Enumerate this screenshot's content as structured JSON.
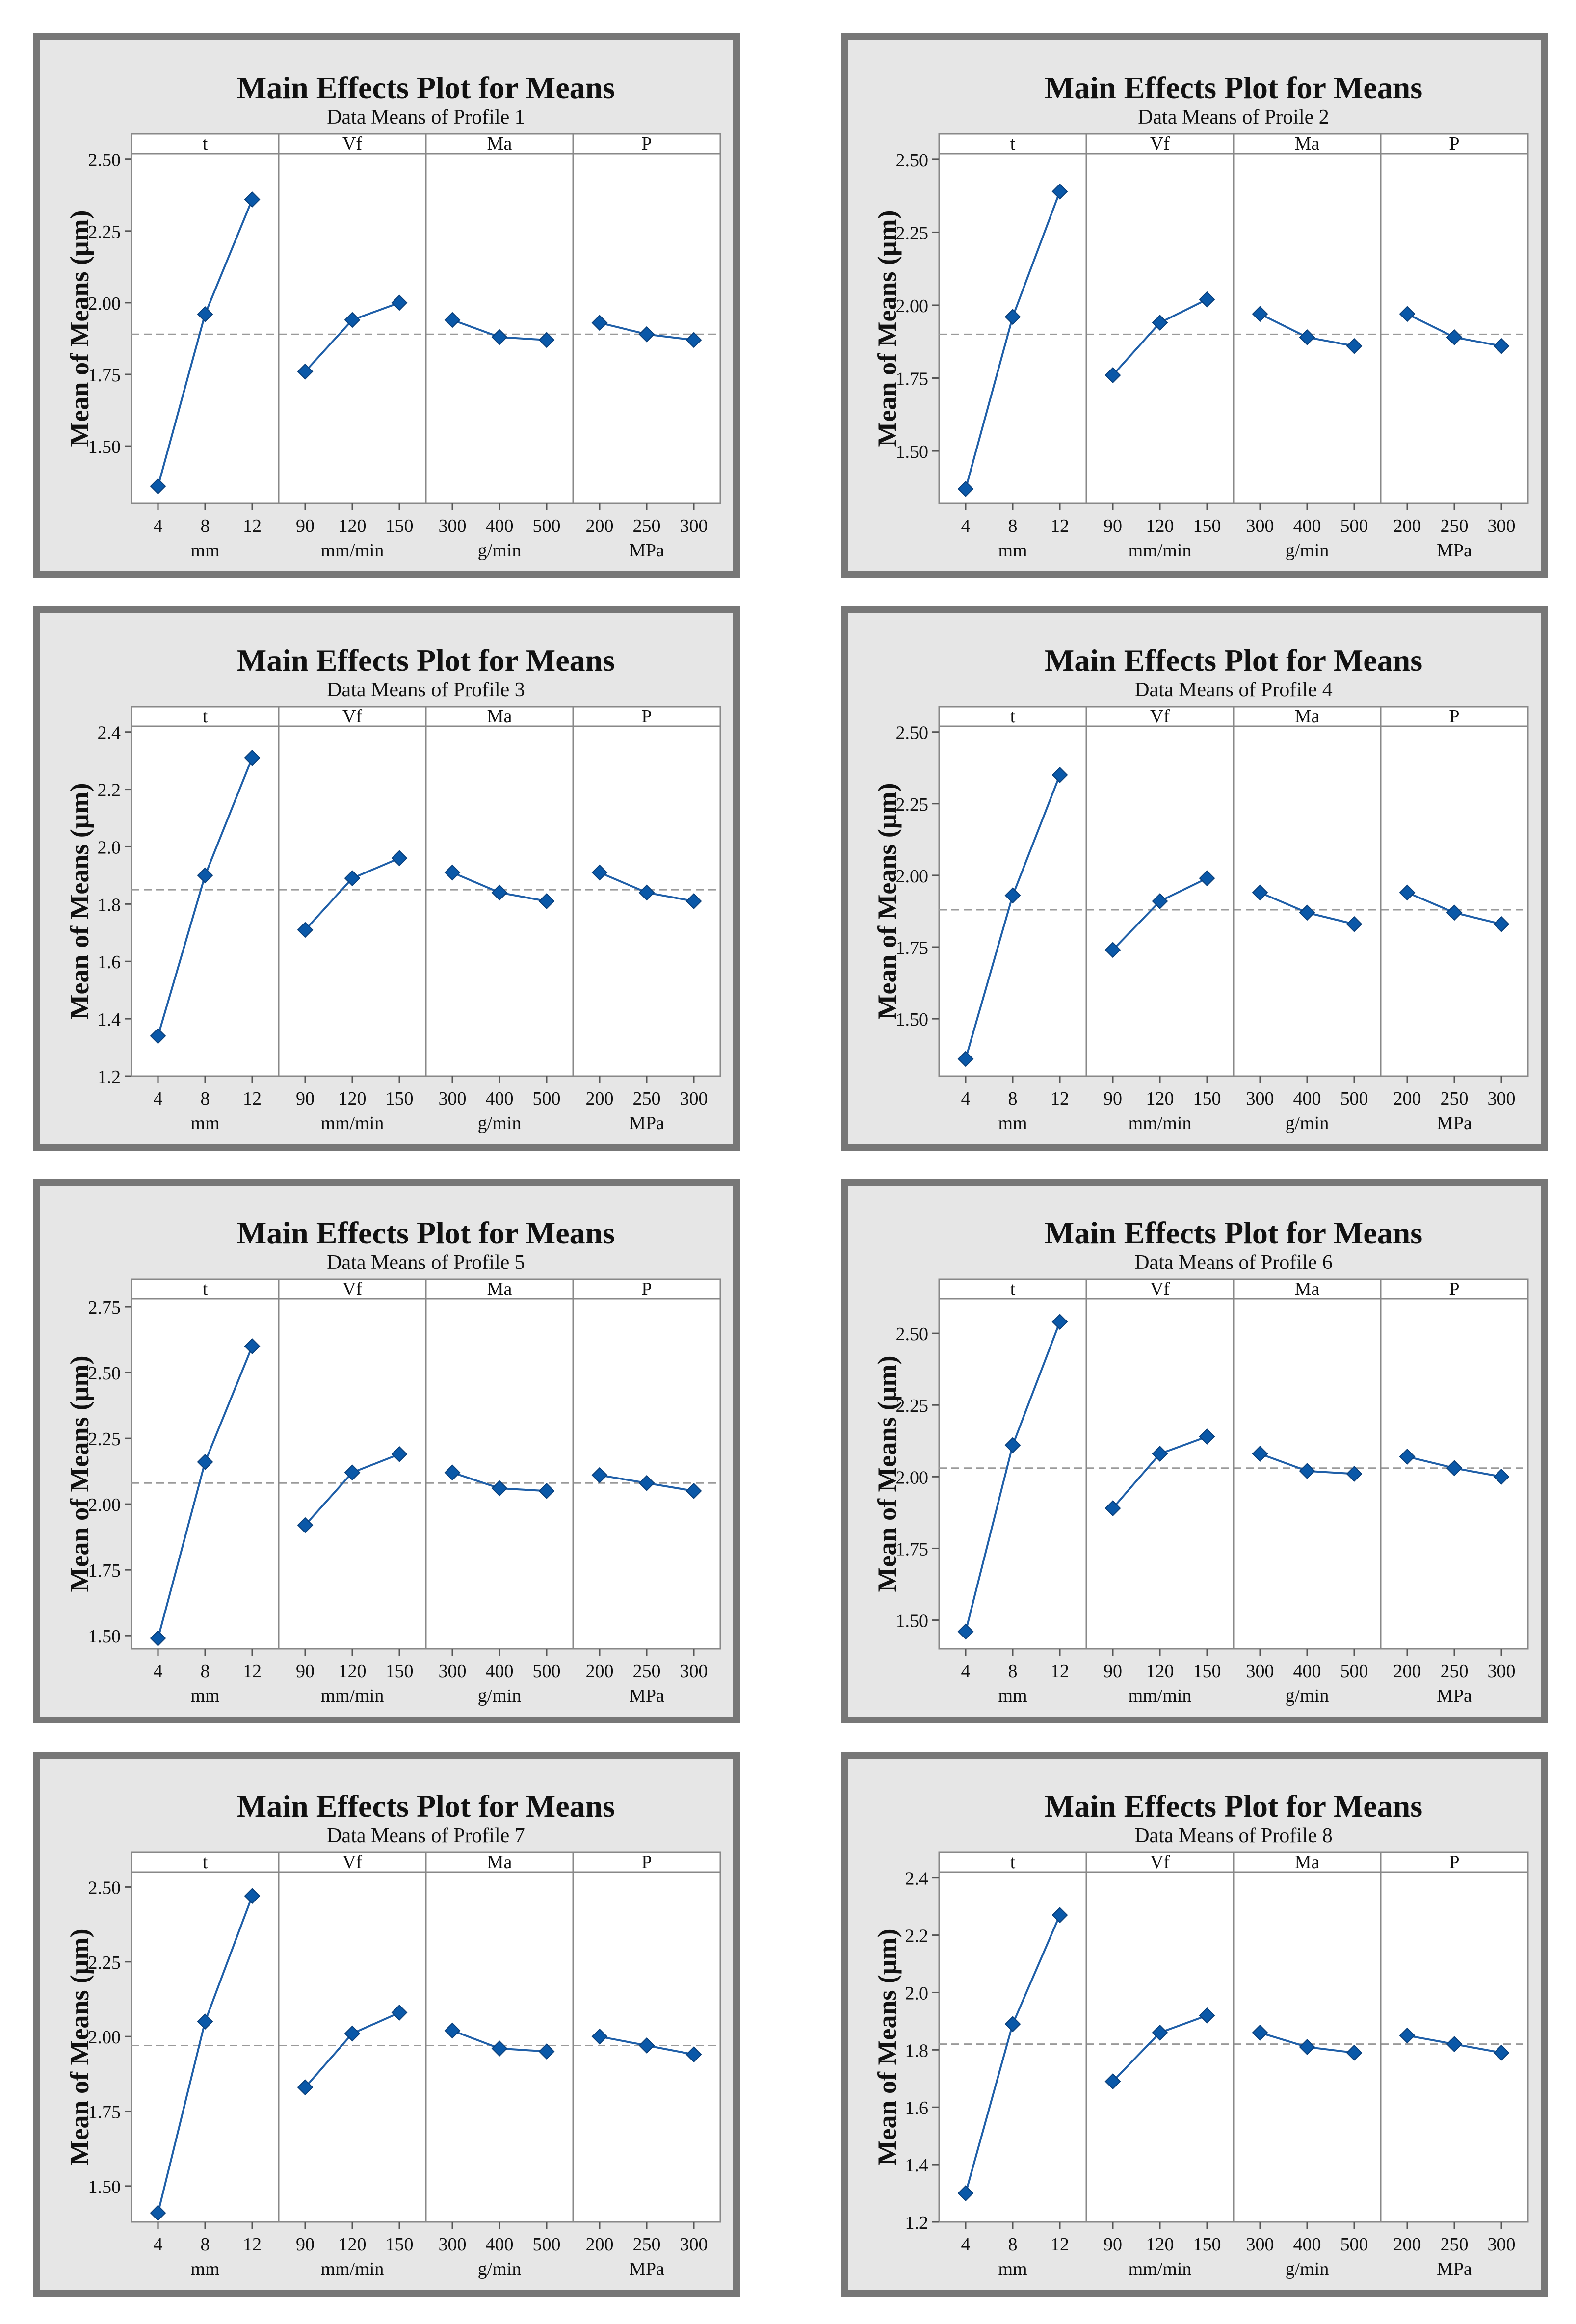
{
  "colors": {
    "line": "#1f5fa8",
    "marker": "#0a58a8",
    "ref_line": "#9a9a9a",
    "frame": "#777777",
    "plot_bg": "#ffffff",
    "panel_bg": "#e6e6e6"
  },
  "chart_data": [
    {
      "type": "line",
      "title": "Main Effects Plot for Means",
      "subtitle": "Data Means of Profile 1",
      "ylabel": "Mean of Means (μm)",
      "ylim": [
        1.3,
        2.52
      ],
      "yticks": [
        1.5,
        1.75,
        2.0,
        2.25,
        2.5
      ],
      "ytick_labels": [
        "1.50",
        "1.75",
        "2.00",
        "2.25",
        "2.50"
      ],
      "reference_mean": 1.89,
      "factors": [
        {
          "name": "t",
          "unit": "mm",
          "levels": [
            "4",
            "8",
            "12"
          ],
          "values": [
            1.36,
            1.96,
            2.36
          ]
        },
        {
          "name": "Vf",
          "unit": "mm/min",
          "levels": [
            "90",
            "120",
            "150"
          ],
          "values": [
            1.76,
            1.94,
            2.0
          ]
        },
        {
          "name": "Ma",
          "unit": "g/min",
          "levels": [
            "300",
            "400",
            "500"
          ],
          "values": [
            1.94,
            1.88,
            1.87
          ]
        },
        {
          "name": "P",
          "unit": "MPa",
          "levels": [
            "200",
            "250",
            "300"
          ],
          "values": [
            1.93,
            1.89,
            1.87
          ]
        }
      ]
    },
    {
      "type": "line",
      "title": "Main Effects Plot for Means",
      "subtitle": "Data Means of Proile 2",
      "ylabel": "Mean of Means (μm)",
      "ylim": [
        1.32,
        2.52
      ],
      "yticks": [
        1.5,
        1.75,
        2.0,
        2.25,
        2.5
      ],
      "ytick_labels": [
        "1.50",
        "1.75",
        "2.00",
        "2.25",
        "2.50"
      ],
      "reference_mean": 1.9,
      "factors": [
        {
          "name": "t",
          "unit": "mm",
          "levels": [
            "4",
            "8",
            "12"
          ],
          "values": [
            1.37,
            1.96,
            2.39
          ]
        },
        {
          "name": "Vf",
          "unit": "mm/min",
          "levels": [
            "90",
            "120",
            "150"
          ],
          "values": [
            1.76,
            1.94,
            2.02
          ]
        },
        {
          "name": "Ma",
          "unit": "g/min",
          "levels": [
            "300",
            "400",
            "500"
          ],
          "values": [
            1.97,
            1.89,
            1.86
          ]
        },
        {
          "name": "P",
          "unit": "MPa",
          "levels": [
            "200",
            "250",
            "300"
          ],
          "values": [
            1.97,
            1.89,
            1.86
          ]
        }
      ]
    },
    {
      "type": "line",
      "title": "Main Effects Plot for Means",
      "subtitle": "Data Means of Profile 3",
      "ylabel": "Mean of Means (μm)",
      "ylim": [
        1.2,
        2.42
      ],
      "yticks": [
        1.2,
        1.4,
        1.6,
        1.8,
        2.0,
        2.2,
        2.4
      ],
      "ytick_labels": [
        "1.2",
        "1.4",
        "1.6",
        "1.8",
        "2.0",
        "2.2",
        "2.4"
      ],
      "reference_mean": 1.85,
      "factors": [
        {
          "name": "t",
          "unit": "mm",
          "levels": [
            "4",
            "8",
            "12"
          ],
          "values": [
            1.34,
            1.9,
            2.31
          ]
        },
        {
          "name": "Vf",
          "unit": "mm/min",
          "levels": [
            "90",
            "120",
            "150"
          ],
          "values": [
            1.71,
            1.89,
            1.96
          ]
        },
        {
          "name": "Ma",
          "unit": "g/min",
          "levels": [
            "300",
            "400",
            "500"
          ],
          "values": [
            1.91,
            1.84,
            1.81
          ]
        },
        {
          "name": "P",
          "unit": "MPa",
          "levels": [
            "200",
            "250",
            "300"
          ],
          "values": [
            1.91,
            1.84,
            1.81
          ]
        }
      ]
    },
    {
      "type": "line",
      "title": "Main Effects Plot for Means",
      "subtitle": "Data Means of Profile 4",
      "ylabel": "Mean of Means (μm)",
      "ylim": [
        1.3,
        2.52
      ],
      "yticks": [
        1.5,
        1.75,
        2.0,
        2.25,
        2.5
      ],
      "ytick_labels": [
        "1.50",
        "1.75",
        "2.00",
        "2.25",
        "2.50"
      ],
      "reference_mean": 1.88,
      "factors": [
        {
          "name": "t",
          "unit": "mm",
          "levels": [
            "4",
            "8",
            "12"
          ],
          "values": [
            1.36,
            1.93,
            2.35
          ]
        },
        {
          "name": "Vf",
          "unit": "mm/min",
          "levels": [
            "90",
            "120",
            "150"
          ],
          "values": [
            1.74,
            1.91,
            1.99
          ]
        },
        {
          "name": "Ma",
          "unit": "g/min",
          "levels": [
            "300",
            "400",
            "500"
          ],
          "values": [
            1.94,
            1.87,
            1.83
          ]
        },
        {
          "name": "P",
          "unit": "MPa",
          "levels": [
            "200",
            "250",
            "300"
          ],
          "values": [
            1.94,
            1.87,
            1.83
          ]
        }
      ]
    },
    {
      "type": "line",
      "title": "Main Effects Plot for Means",
      "subtitle": "Data Means of Profile 5",
      "ylabel": "Mean of Means  (μm)",
      "ylim": [
        1.45,
        2.78
      ],
      "yticks": [
        1.5,
        1.75,
        2.0,
        2.25,
        2.5,
        2.75
      ],
      "ytick_labels": [
        "1.50",
        "1.75",
        "2.00",
        "2.25",
        "2.50",
        "2.75"
      ],
      "reference_mean": 2.08,
      "factors": [
        {
          "name": "t",
          "unit": "mm",
          "levels": [
            "4",
            "8",
            "12"
          ],
          "values": [
            1.49,
            2.16,
            2.6
          ]
        },
        {
          "name": "Vf",
          "unit": "mm/min",
          "levels": [
            "90",
            "120",
            "150"
          ],
          "values": [
            1.92,
            2.12,
            2.19
          ]
        },
        {
          "name": "Ma",
          "unit": "g/min",
          "levels": [
            "300",
            "400",
            "500"
          ],
          "values": [
            2.12,
            2.06,
            2.05
          ]
        },
        {
          "name": "P",
          "unit": "MPa",
          "levels": [
            "200",
            "250",
            "300"
          ],
          "values": [
            2.11,
            2.08,
            2.05
          ]
        }
      ]
    },
    {
      "type": "line",
      "title": "Main Effects Plot for Means",
      "subtitle": "Data Means of Profile 6",
      "ylabel": "Mean of Means (μm)",
      "ylim": [
        1.4,
        2.62
      ],
      "yticks": [
        1.5,
        1.75,
        2.0,
        2.25,
        2.5
      ],
      "ytick_labels": [
        "1.50",
        "1.75",
        "2.00",
        "2.25",
        "2.50"
      ],
      "reference_mean": 2.03,
      "factors": [
        {
          "name": "t",
          "unit": "mm",
          "levels": [
            "4",
            "8",
            "12"
          ],
          "values": [
            1.46,
            2.11,
            2.54
          ]
        },
        {
          "name": "Vf",
          "unit": "mm/min",
          "levels": [
            "90",
            "120",
            "150"
          ],
          "values": [
            1.89,
            2.08,
            2.14
          ]
        },
        {
          "name": "Ma",
          "unit": "g/min",
          "levels": [
            "300",
            "400",
            "500"
          ],
          "values": [
            2.08,
            2.02,
            2.01
          ]
        },
        {
          "name": "P",
          "unit": "MPa",
          "levels": [
            "200",
            "250",
            "300"
          ],
          "values": [
            2.07,
            2.03,
            2.0
          ]
        }
      ]
    },
    {
      "type": "line",
      "title": "Main Effects Plot for Means",
      "subtitle": "Data Means of Profile 7",
      "ylabel": "Mean of Means (μm)",
      "ylim": [
        1.38,
        2.55
      ],
      "yticks": [
        1.5,
        1.75,
        2.0,
        2.25,
        2.5
      ],
      "ytick_labels": [
        "1.50",
        "1.75",
        "2.00",
        "2.25",
        "2.50"
      ],
      "reference_mean": 1.97,
      "factors": [
        {
          "name": "t",
          "unit": "mm",
          "levels": [
            "4",
            "8",
            "12"
          ],
          "values": [
            1.41,
            2.05,
            2.47
          ]
        },
        {
          "name": "Vf",
          "unit": "mm/min",
          "levels": [
            "90",
            "120",
            "150"
          ],
          "values": [
            1.83,
            2.01,
            2.08
          ]
        },
        {
          "name": "Ma",
          "unit": "g/min",
          "levels": [
            "300",
            "400",
            "500"
          ],
          "values": [
            2.02,
            1.96,
            1.95
          ]
        },
        {
          "name": "P",
          "unit": "MPa",
          "levels": [
            "200",
            "250",
            "300"
          ],
          "values": [
            2.0,
            1.97,
            1.94
          ]
        }
      ]
    },
    {
      "type": "line",
      "title": "Main Effects Plot for Means",
      "subtitle": "Data Means of Profile 8",
      "ylabel": "Mean of Means (μm)",
      "ylim": [
        1.2,
        2.42
      ],
      "yticks": [
        1.2,
        1.4,
        1.6,
        1.8,
        2.0,
        2.2,
        2.4
      ],
      "ytick_labels": [
        "1.2",
        "1.4",
        "1.6",
        "1.8",
        "2.0",
        "2.2",
        "2.4"
      ],
      "reference_mean": 1.82,
      "factors": [
        {
          "name": "t",
          "unit": "mm",
          "levels": [
            "4",
            "8",
            "12"
          ],
          "values": [
            1.3,
            1.89,
            2.27
          ]
        },
        {
          "name": "Vf",
          "unit": "mm/min",
          "levels": [
            "90",
            "120",
            "150"
          ],
          "values": [
            1.69,
            1.86,
            1.92
          ]
        },
        {
          "name": "Ma",
          "unit": "g/min",
          "levels": [
            "300",
            "400",
            "500"
          ],
          "values": [
            1.86,
            1.81,
            1.79
          ]
        },
        {
          "name": "P",
          "unit": "MPa",
          "levels": [
            "200",
            "250",
            "300"
          ],
          "values": [
            1.85,
            1.82,
            1.79
          ]
        }
      ]
    }
  ]
}
